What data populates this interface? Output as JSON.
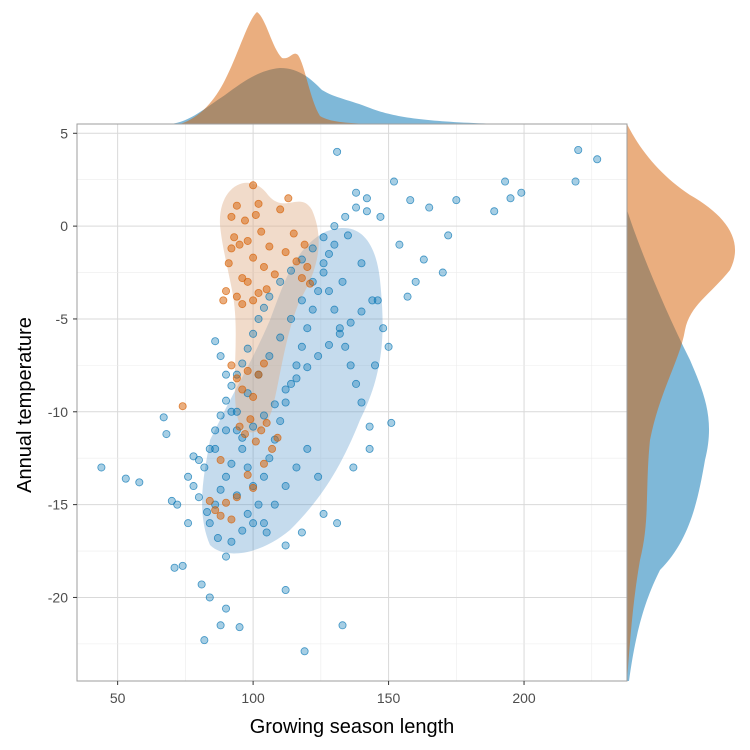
{
  "chart_data": {
    "type": "scatter",
    "xlabel": "Growing season length",
    "ylabel": "Annual temperature",
    "xlim": [
      35,
      238
    ],
    "ylim": [
      -24.5,
      5.5
    ],
    "x_ticks": [
      50,
      100,
      150,
      200
    ],
    "y_ticks": [
      5,
      0,
      -5,
      -10,
      -15,
      -20
    ],
    "x_tick_labels": [
      "50",
      "100",
      "150",
      "200"
    ],
    "y_tick_labels": [
      "5",
      "0",
      "-5",
      "-10",
      "-15",
      "-20"
    ],
    "grid": true,
    "legend": "none",
    "marginal_density_top": true,
    "marginal_density_right": true,
    "series": [
      {
        "color": "#0072B2",
        "fill_alpha": 0.35,
        "contour_color": "#4a90c8",
        "points": [
          [
            44,
            -13
          ],
          [
            53,
            -13.6
          ],
          [
            58,
            -13.8
          ],
          [
            67,
            -10.3
          ],
          [
            68,
            -11.2
          ],
          [
            70,
            -14.8
          ],
          [
            71,
            -18.4
          ],
          [
            72,
            -15
          ],
          [
            74,
            -18.3
          ],
          [
            76,
            -16
          ],
          [
            78,
            -12.4
          ],
          [
            81,
            -19.3
          ],
          [
            82,
            -22.3
          ],
          [
            84,
            -20
          ],
          [
            88,
            -21.5
          ],
          [
            90,
            -20.6
          ],
          [
            90,
            -17.8
          ],
          [
            95,
            -21.6
          ],
          [
            112,
            -19.6
          ],
          [
            119,
            -22.9
          ],
          [
            133,
            -21.5
          ],
          [
            131,
            4
          ],
          [
            158,
            1.4
          ],
          [
            165,
            1
          ],
          [
            170,
            -2.5
          ],
          [
            172,
            -0.5
          ],
          [
            175,
            1.4
          ],
          [
            189,
            0.8
          ],
          [
            193,
            2.4
          ],
          [
            195,
            1.5
          ],
          [
            199,
            1.8
          ],
          [
            219,
            2.4
          ],
          [
            220,
            4.1
          ],
          [
            227,
            3.6
          ],
          [
            150,
            -6.5
          ],
          [
            145,
            -7.5
          ],
          [
            151,
            -10.6
          ],
          [
            143,
            -10.8
          ],
          [
            133,
            -3
          ],
          [
            128,
            -1.5
          ],
          [
            140,
            -2
          ],
          [
            146,
            -4
          ],
          [
            154,
            -1
          ],
          [
            160,
            -3
          ],
          [
            152,
            2.4
          ],
          [
            147,
            0.5
          ],
          [
            138,
            1.8
          ],
          [
            142,
            0.8
          ],
          [
            135,
            -0.5
          ],
          [
            163,
            -1.8
          ],
          [
            157,
            -3.8
          ],
          [
            148,
            -5.5
          ],
          [
            124,
            -13.5
          ],
          [
            126,
            -15.5
          ],
          [
            131,
            -16
          ],
          [
            137,
            -13
          ],
          [
            143,
            -12
          ],
          [
            118,
            -16.5
          ],
          [
            112,
            -17.2
          ],
          [
            105,
            -16.5
          ],
          [
            100,
            -16
          ],
          [
            96,
            -16.4
          ],
          [
            92,
            -17
          ],
          [
            87,
            -16.8
          ],
          [
            84,
            -16
          ],
          [
            83,
            -15.4
          ],
          [
            80,
            -14.6
          ],
          [
            78,
            -14
          ],
          [
            76,
            -13.5
          ],
          [
            80,
            -12.6
          ],
          [
            84,
            -12
          ],
          [
            86,
            -11
          ],
          [
            88,
            -10.2
          ],
          [
            90,
            -9.4
          ],
          [
            92,
            -8.6
          ],
          [
            94,
            -8
          ],
          [
            96,
            -7.4
          ],
          [
            98,
            -6.6
          ],
          [
            100,
            -5.8
          ],
          [
            102,
            -5
          ],
          [
            104,
            -4.4
          ],
          [
            106,
            -3.8
          ],
          [
            110,
            -3
          ],
          [
            114,
            -2.4
          ],
          [
            118,
            -1.8
          ],
          [
            122,
            -1.2
          ],
          [
            126,
            -0.6
          ],
          [
            130,
            0
          ],
          [
            134,
            0.5
          ],
          [
            138,
            1
          ],
          [
            142,
            1.5
          ],
          [
            86,
            -6.2
          ],
          [
            88,
            -7
          ],
          [
            90,
            -8
          ],
          [
            92,
            -10
          ],
          [
            94,
            -11
          ],
          [
            96,
            -12
          ],
          [
            98,
            -13
          ],
          [
            100,
            -14
          ],
          [
            102,
            -15
          ],
          [
            104,
            -13.5
          ],
          [
            106,
            -12.5
          ],
          [
            108,
            -11.5
          ],
          [
            110,
            -10.5
          ],
          [
            112,
            -9.5
          ],
          [
            114,
            -8.5
          ],
          [
            116,
            -7.5
          ],
          [
            118,
            -6.5
          ],
          [
            120,
            -5.5
          ],
          [
            122,
            -4.5
          ],
          [
            124,
            -3.5
          ],
          [
            126,
            -2.5
          ],
          [
            128,
            -3.5
          ],
          [
            130,
            -4.5
          ],
          [
            132,
            -5.5
          ],
          [
            134,
            -6.5
          ],
          [
            136,
            -7.5
          ],
          [
            138,
            -8.5
          ],
          [
            140,
            -9.5
          ],
          [
            120,
            -12
          ],
          [
            116,
            -13
          ],
          [
            112,
            -14
          ],
          [
            108,
            -15
          ],
          [
            104,
            -16
          ],
          [
            98,
            -15.5
          ],
          [
            94,
            -14.5
          ],
          [
            90,
            -13.5
          ],
          [
            88,
            -14.2
          ],
          [
            86,
            -15
          ],
          [
            92,
            -12.8
          ],
          [
            96,
            -11.4
          ],
          [
            100,
            -10.8
          ],
          [
            104,
            -10.2
          ],
          [
            108,
            -9.6
          ],
          [
            112,
            -8.8
          ],
          [
            116,
            -8.2
          ],
          [
            120,
            -7.6
          ],
          [
            124,
            -7
          ],
          [
            128,
            -6.4
          ],
          [
            132,
            -5.8
          ],
          [
            136,
            -5.2
          ],
          [
            140,
            -4.6
          ],
          [
            144,
            -4
          ],
          [
            102,
            -8
          ],
          [
            106,
            -7
          ],
          [
            110,
            -6
          ],
          [
            114,
            -5
          ],
          [
            118,
            -4
          ],
          [
            122,
            -3
          ],
          [
            126,
            -2
          ],
          [
            130,
            -1
          ],
          [
            98,
            -9
          ],
          [
            94,
            -10
          ],
          [
            90,
            -11
          ],
          [
            86,
            -12
          ],
          [
            82,
            -13
          ]
        ]
      },
      {
        "color": "#D55E00",
        "fill_alpha": 0.5,
        "contour_color": "#e0b08a",
        "points": [
          [
            74,
            -9.7
          ],
          [
            89,
            -4
          ],
          [
            90,
            -3.5
          ],
          [
            91,
            -2
          ],
          [
            92,
            -1.2
          ],
          [
            92,
            0.5
          ],
          [
            93,
            -0.6
          ],
          [
            94,
            1.1
          ],
          [
            95,
            -1
          ],
          [
            96,
            -2.8
          ],
          [
            97,
            0.3
          ],
          [
            98,
            -0.8
          ],
          [
            100,
            2.2
          ],
          [
            100,
            -1.7
          ],
          [
            101,
            0.6
          ],
          [
            102,
            1.2
          ],
          [
            103,
            -0.3
          ],
          [
            104,
            -2.2
          ],
          [
            105,
            -3.4
          ],
          [
            106,
            -1.1
          ],
          [
            108,
            -2.6
          ],
          [
            110,
            0.9
          ],
          [
            112,
            -1.4
          ],
          [
            113,
            1.5
          ],
          [
            115,
            -0.4
          ],
          [
            116,
            -1.9
          ],
          [
            118,
            -2.8
          ],
          [
            120,
            -2.2
          ],
          [
            121,
            -3.1
          ],
          [
            119,
            -1
          ],
          [
            94,
            -3.8
          ],
          [
            96,
            -4.2
          ],
          [
            98,
            -3
          ],
          [
            100,
            -4
          ],
          [
            102,
            -3.6
          ],
          [
            92,
            -7.5
          ],
          [
            94,
            -8.2
          ],
          [
            96,
            -8.8
          ],
          [
            98,
            -7.8
          ],
          [
            100,
            -9.2
          ],
          [
            102,
            -8
          ],
          [
            104,
            -7.4
          ],
          [
            95,
            -10.8
          ],
          [
            97,
            -11.2
          ],
          [
            99,
            -10.4
          ],
          [
            101,
            -11.6
          ],
          [
            103,
            -11
          ],
          [
            105,
            -10.6
          ],
          [
            107,
            -12
          ],
          [
            109,
            -11.4
          ],
          [
            84,
            -14.8
          ],
          [
            86,
            -15.3
          ],
          [
            88,
            -15.6
          ],
          [
            90,
            -14.9
          ],
          [
            92,
            -15.8
          ],
          [
            94,
            -14.6
          ],
          [
            98,
            -13.4
          ],
          [
            100,
            -14.1
          ],
          [
            104,
            -12.8
          ],
          [
            88,
            -12.6
          ]
        ]
      }
    ]
  }
}
